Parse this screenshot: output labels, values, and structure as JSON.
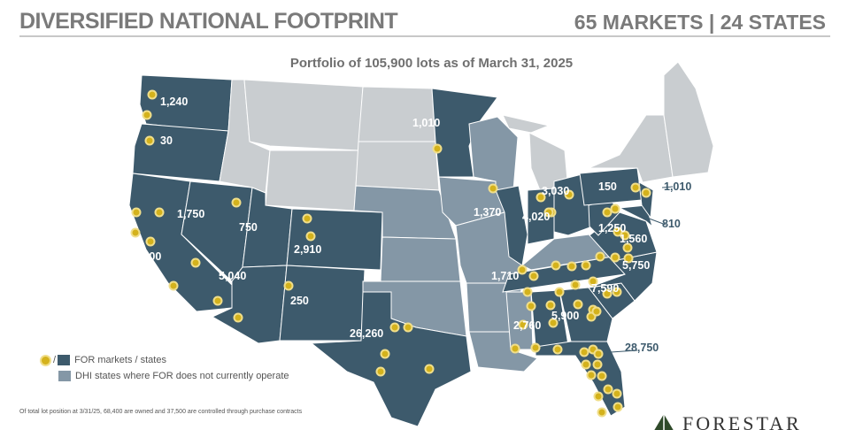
{
  "header": {
    "title": "DIVERSIFIED NATIONAL FOOTPRINT",
    "summary": "65 MARKETS | 24 STATES"
  },
  "subtitle": "Portfolio of 105,900 lots as of March 31, 2025",
  "colors": {
    "for_state": "#3d5a6c",
    "dhi_state": "#8497a6",
    "other_state": "#c9cdd0",
    "market_dot": "#d4b21c"
  },
  "state_lots": [
    "1,240",
    "30",
    "1,750",
    "1,000",
    "5,040",
    "750",
    "2,910",
    "250",
    "26,260",
    "1,010",
    "1,370",
    "4,020",
    "3,030",
    "150",
    "1,010",
    "810",
    "1,250",
    "1,560",
    "5,750",
    "7,590",
    "1,710",
    "5,900",
    "2,760",
    "28,750"
  ],
  "legend": {
    "for_label": "FOR markets / states",
    "separator": "/",
    "dhi_label": "DHI states where FOR does not currently operate"
  },
  "footnote": "Of total lot position at 3/31/25, 68,400 are owned and 37,500 are controlled through purchase contracts",
  "logo": {
    "text": "FORESTAR"
  }
}
